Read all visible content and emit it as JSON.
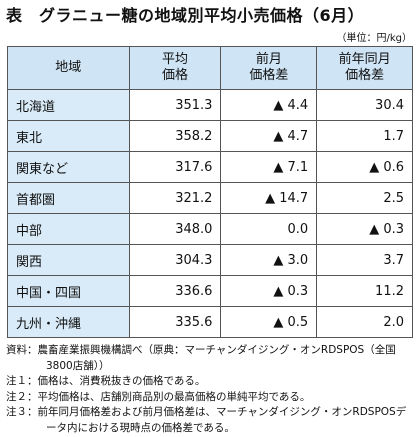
{
  "header": {
    "title": "表　グラニュー糖の地域別平均小売価格（6月）",
    "unit": "（単位：円/kg）"
  },
  "table": {
    "columns": [
      [
        "地域"
      ],
      [
        "平均",
        "価格"
      ],
      [
        "前月",
        "価格差"
      ],
      [
        "前年同月",
        "価格差"
      ]
    ],
    "rows": [
      [
        "北海道",
        "351.3",
        "▲ 4.4",
        "30.4"
      ],
      [
        "東北",
        "358.2",
        "▲ 4.7",
        "1.7"
      ],
      [
        "関東など",
        "317.6",
        "▲ 7.1",
        "▲ 0.6"
      ],
      [
        "首都圏",
        "321.2",
        "▲ 14.7",
        "2.5"
      ],
      [
        "中部",
        "348.0",
        "0.0",
        "▲ 0.3"
      ],
      [
        "関西",
        "304.3",
        "▲ 3.0",
        "3.7"
      ],
      [
        "中国・四国",
        "336.6",
        "▲ 0.3",
        "11.2"
      ],
      [
        "九州・沖縄",
        "335.6",
        "▲ 0.5",
        "2.0"
      ]
    ]
  },
  "notes": [
    "資料：農畜産業振興機構調べ（原典：マーチャンダイジング・オンRDSPOS（全国3800店舗））",
    "注１：価格は、消費税抜きの価格である。",
    "注２：平均価格は、店舗別商品別の最高価格の単純平均である。",
    "注３：前年同月価格差および前月価格差は、マーチャンダイジング・オンRDSPOSデータ内における現時点の価格差である。"
  ]
}
